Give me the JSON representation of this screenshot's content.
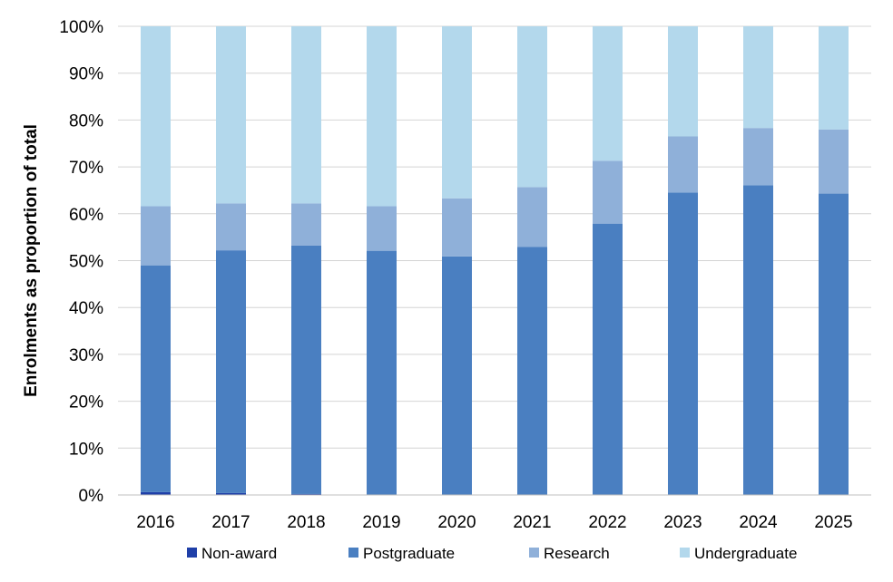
{
  "chart_data": {
    "type": "bar",
    "stacked": true,
    "categories": [
      "2016",
      "2017",
      "2018",
      "2019",
      "2020",
      "2021",
      "2022",
      "2023",
      "2024",
      "2025"
    ],
    "series": [
      {
        "name": "Non-award",
        "color": "#1f3fa8",
        "values": [
          0.6,
          0.4,
          0.2,
          0.1,
          0.1,
          0.1,
          0.1,
          0.1,
          0.1,
          0.1
        ]
      },
      {
        "name": "Postgraduate",
        "color": "#4a7fc1",
        "values": [
          48.4,
          51.8,
          53.0,
          52.0,
          50.8,
          52.8,
          57.8,
          64.4,
          66.0,
          64.2
        ]
      },
      {
        "name": "Research",
        "color": "#8fb0d9",
        "values": [
          12.6,
          10.0,
          9.0,
          9.5,
          12.4,
          12.8,
          13.4,
          12.0,
          12.2,
          13.7
        ]
      },
      {
        "name": "Undergraduate",
        "color": "#b3d8ec",
        "values": [
          38.4,
          37.8,
          37.8,
          38.4,
          36.7,
          34.3,
          28.7,
          23.5,
          21.7,
          22.0
        ]
      }
    ],
    "ylabel": "Enrolments as proportion of total",
    "xlabel": "",
    "ylim": [
      0,
      100
    ],
    "yticks": [
      "0%",
      "10%",
      "20%",
      "30%",
      "40%",
      "50%",
      "60%",
      "70%",
      "80%",
      "90%",
      "100%"
    ],
    "grid": true,
    "legend_position": "bottom"
  }
}
